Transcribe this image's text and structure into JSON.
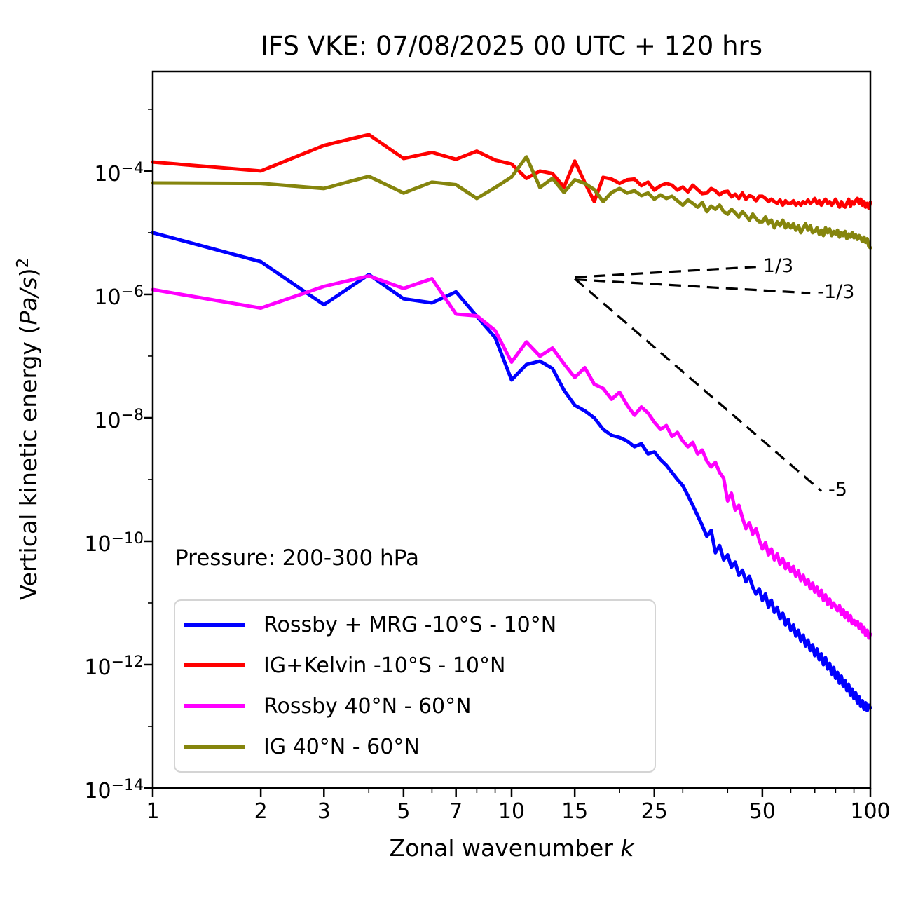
{
  "title": "IFS VKE: 07/08/2025 00 UTC + 120 hrs",
  "annotation": {
    "pressure": "Pressure: 200-300 hPa"
  },
  "axes": {
    "x_label_text": "Zonal wavenumber ",
    "x_label_symbol": "k",
    "y_label_text": "Vertical kinetic energy (",
    "y_label_unit": "Pa/s",
    "y_label_close": ")",
    "y_label_exponent": "2",
    "x_scale": "log",
    "y_scale": "log",
    "xlim": [
      1,
      100
    ],
    "ylim": [
      1e-14,
      0.0041
    ],
    "x_major_ticks": [
      1,
      2,
      3,
      5,
      7,
      10,
      15,
      25,
      50,
      100
    ],
    "x_minor_ticks": [
      4,
      6,
      8,
      9,
      20,
      30,
      40,
      60,
      70,
      80,
      90
    ],
    "y_major_exponents": [
      -4,
      -6,
      -8,
      -10,
      -12,
      -14
    ],
    "y_minor_exponents": [
      -3,
      -5,
      -7,
      -9,
      -11,
      -13
    ],
    "grid": false
  },
  "chart_data": {
    "type": "line",
    "x_scale": "log",
    "y_scale": "log",
    "x": [
      1,
      2,
      3,
      4,
      5,
      6,
      7,
      8,
      9,
      10,
      11,
      12,
      13,
      14,
      15,
      16,
      17,
      18,
      19,
      20,
      21,
      22,
      23,
      24,
      25,
      26,
      27,
      28,
      29,
      30,
      31,
      32,
      33,
      34,
      35,
      36,
      37,
      38,
      39,
      40,
      41,
      42,
      43,
      44,
      45,
      46,
      47,
      48,
      49,
      50,
      51,
      52,
      53,
      54,
      55,
      56,
      57,
      58,
      59,
      60,
      61,
      62,
      63,
      64,
      65,
      66,
      67,
      68,
      69,
      70,
      71,
      72,
      73,
      74,
      75,
      76,
      77,
      78,
      79,
      80,
      81,
      82,
      83,
      84,
      85,
      86,
      87,
      88,
      89,
      90,
      91,
      92,
      93,
      94,
      95,
      96,
      97,
      98,
      99,
      100
    ],
    "series": [
      {
        "id": "rossby-mrg-tropics",
        "label": "Rossby + MRG -10°S - 10°N",
        "color": "#0000ff",
        "values": [
          1e-05,
          3.4e-06,
          6.8e-07,
          2.1e-06,
          8.5e-07,
          7.3e-07,
          1.1e-06,
          4.4e-07,
          2e-07,
          4.1e-08,
          7.3e-08,
          8.3e-08,
          6.3e-08,
          2.8e-08,
          1.6e-08,
          1.3e-08,
          1e-08,
          6.5e-09,
          5.2e-09,
          4.8e-09,
          4.2e-09,
          3.4e-09,
          3.8e-09,
          2.6e-09,
          2.8e-09,
          2.1e-09,
          1.7e-09,
          1.3e-09,
          1e-09,
          8e-10,
          5.5e-10,
          3.8e-10,
          2.6e-10,
          1.8e-10,
          1.2e-10,
          1.5e-10,
          6.5e-11,
          8.5e-11,
          5e-11,
          6e-11,
          3.8e-11,
          4.6e-11,
          2.8e-11,
          3.4e-11,
          2.2e-11,
          2.7e-11,
          1.8e-11,
          1.4e-11,
          1.7e-11,
          1.1e-11,
          1.4e-11,
          8.5e-12,
          1.1e-11,
          7e-12,
          8.5e-12,
          5.5e-12,
          6.8e-12,
          4.4e-12,
          5.4e-12,
          3.6e-12,
          4.4e-12,
          2.9e-12,
          3.6e-12,
          2.4e-12,
          3e-12,
          2e-12,
          2.5e-12,
          1.7e-12,
          2.1e-12,
          1.4e-12,
          1.8e-12,
          1.2e-12,
          1.5e-12,
          1e-12,
          1.3e-12,
          8.5e-13,
          1.05e-12,
          7e-13,
          9e-13,
          6e-13,
          7.5e-13,
          5e-13,
          6.5e-13,
          4.5e-13,
          5.5e-13,
          3.8e-13,
          4.8e-13,
          3.2e-13,
          4e-13,
          2.8e-13,
          3.5e-13,
          2.4e-13,
          3e-13,
          2.1e-13,
          2.6e-13,
          1.9e-13,
          2.4e-13,
          1.8e-13,
          2.2e-13,
          2e-13
        ]
      },
      {
        "id": "ig-kelvin-tropics",
        "label": "IG+Kelvin -10°S - 10°N",
        "color": "#ff0000",
        "values": [
          0.00014,
          0.0001,
          0.00026,
          0.00039,
          0.00016,
          0.0002,
          0.000155,
          0.00021,
          0.00015,
          0.00013,
          7.6e-05,
          0.0001,
          9.1e-05,
          5.5e-05,
          0.000145,
          6.5e-05,
          3.2e-05,
          7.9e-05,
          7.4e-05,
          6.3e-05,
          7.2e-05,
          7.4e-05,
          5.8e-05,
          6.6e-05,
          4.9e-05,
          5.8e-05,
          6.3e-05,
          5.9e-05,
          4.9e-05,
          5.5e-05,
          4.6e-05,
          5.9e-05,
          5e-05,
          4.3e-05,
          4.4e-05,
          5.2e-05,
          4.8e-05,
          4.1e-05,
          4.6e-05,
          4.7e-05,
          3.8e-05,
          4.2e-05,
          3.6e-05,
          4.4e-05,
          3.5e-05,
          4e-05,
          3.8e-05,
          3.3e-05,
          3.9e-05,
          3.9e-05,
          3.6e-05,
          3.2e-05,
          3.5e-05,
          3.2e-05,
          3e-05,
          3.4e-05,
          2.8e-05,
          3.3e-05,
          3e-05,
          3e-05,
          3.3e-05,
          2.8e-05,
          3.1e-05,
          2.8e-05,
          3.2e-05,
          3e-05,
          3.4e-05,
          3e-05,
          3.2e-05,
          3.6e-05,
          3e-05,
          3.3e-05,
          2.8e-05,
          3.2e-05,
          3.5e-05,
          3e-05,
          3.2e-05,
          2.8e-05,
          3.1e-05,
          3.5e-05,
          3e-05,
          2.6e-05,
          3.2e-05,
          2.8e-05,
          2.6e-05,
          3e-05,
          3.5e-05,
          2.7e-05,
          3.2e-05,
          2.9e-05,
          3.3e-05,
          3.6e-05,
          3e-05,
          3.5e-05,
          2.8e-05,
          3.2e-05,
          2.6e-05,
          3e-05,
          2.5e-05,
          3.1e-05
        ]
      },
      {
        "id": "rossby-midlat",
        "label": "Rossby 40°N - 60°N",
        "color": "#ff00ff",
        "values": [
          1.2e-06,
          6e-07,
          1.35e-06,
          2e-06,
          1.25e-06,
          1.8e-06,
          4.8e-07,
          4.5e-07,
          2.6e-07,
          8e-08,
          1.7e-07,
          1e-07,
          1.35e-07,
          7.5e-08,
          4.5e-08,
          6.5e-08,
          3.5e-08,
          3e-08,
          2e-08,
          2.6e-08,
          1.6e-08,
          1.1e-08,
          1.5e-08,
          1.2e-08,
          8.5e-09,
          6.5e-09,
          7.5e-09,
          5e-09,
          5.8e-09,
          4.2e-09,
          3.4e-09,
          4e-09,
          2.6e-09,
          3e-09,
          2e-09,
          1.6e-09,
          1.9e-09,
          1.3e-09,
          1.05e-09,
          4.5e-10,
          6e-10,
          3.2e-10,
          3.8e-10,
          2.4e-10,
          1.6e-10,
          2e-10,
          1.3e-10,
          1.6e-10,
          1.05e-10,
          7.5e-11,
          9.5e-11,
          6e-11,
          7.5e-11,
          5e-11,
          6.2e-11,
          4.2e-11,
          5.2e-11,
          3.6e-11,
          4.4e-11,
          3.2e-11,
          3.9e-11,
          2.7e-11,
          3.3e-11,
          2.3e-11,
          2.8e-11,
          2e-11,
          2.4e-11,
          1.7e-11,
          2.1e-11,
          1.5e-11,
          1.8e-11,
          1.3e-11,
          1.6e-11,
          1.1e-11,
          1.35e-11,
          9.5e-12,
          1.15e-11,
          8.5e-12,
          1e-11,
          8.7e-12,
          7.5e-12,
          9e-12,
          6.5e-12,
          7.8e-12,
          5.8e-12,
          7e-12,
          5.2e-12,
          6.2e-12,
          4.6e-12,
          5.2e-12,
          4.4e-12,
          5e-12,
          3.9e-12,
          4.6e-12,
          3.4e-12,
          4e-12,
          3e-12,
          3.6e-12,
          2.7e-12,
          3.1e-12
        ]
      },
      {
        "id": "ig-midlat",
        "label": "IG 40°N - 60°N",
        "color": "#85850d",
        "values": [
          6.4e-05,
          6.3e-05,
          5.2e-05,
          8.2e-05,
          4.4e-05,
          6.6e-05,
          6e-05,
          3.6e-05,
          5.4e-05,
          8e-05,
          0.00017,
          5.4e-05,
          7.6e-05,
          4.5e-05,
          7.2e-05,
          6.3e-05,
          5e-05,
          3.2e-05,
          4.5e-05,
          5.2e-05,
          4.4e-05,
          4.8e-05,
          4e-05,
          4.4e-05,
          3.5e-05,
          4.1e-05,
          3.6e-05,
          3.9e-05,
          3.3e-05,
          2.8e-05,
          3.4e-05,
          3e-05,
          2.6e-05,
          3.1e-05,
          2.2e-05,
          2.7e-05,
          2.4e-05,
          2.8e-05,
          2.2e-05,
          2e-05,
          2.4e-05,
          2.1e-05,
          1.8e-05,
          2.2e-05,
          1.9e-05,
          1.6e-05,
          2e-05,
          1.7e-05,
          1.5e-05,
          1.5e-05,
          1.8e-05,
          1.4e-05,
          1.6e-05,
          1.2e-05,
          1.5e-05,
          1.3e-05,
          1.6e-05,
          1.2e-05,
          1.4e-05,
          1.2e-05,
          1.4e-05,
          1.1e-05,
          1.3e-05,
          1e-05,
          1.2e-05,
          1.4e-05,
          1.1e-05,
          1.3e-05,
          1e-05,
          1.05e-05,
          1.2e-05,
          9.5e-06,
          1.1e-05,
          9e-06,
          1.2e-05,
          1e-05,
          1.15e-05,
          9e-06,
          1.05e-05,
          9.5e-06,
          1.1e-05,
          8.5e-06,
          1e-05,
          9e-06,
          1.05e-05,
          8e-06,
          9.5e-06,
          8.5e-06,
          1e-05,
          8.3e-06,
          9.2e-06,
          7.8e-06,
          9e-06,
          8.2e-06,
          7.2e-06,
          8.5e-06,
          7e-06,
          8e-06,
          6e-06,
          5.7e-06
        ]
      }
    ],
    "reference_lines": [
      {
        "label": "1/3",
        "points": [
          [
            15,
            1.9e-06
          ],
          [
            48,
            2.8e-06
          ]
        ]
      },
      {
        "label": "-1/3",
        "points": [
          [
            15,
            1.75e-06
          ],
          [
            68,
            1.05e-06
          ]
        ]
      },
      {
        "label": "-5",
        "points": [
          [
            15,
            1.8e-06
          ],
          [
            73,
            6.5e-10
          ]
        ]
      }
    ]
  }
}
